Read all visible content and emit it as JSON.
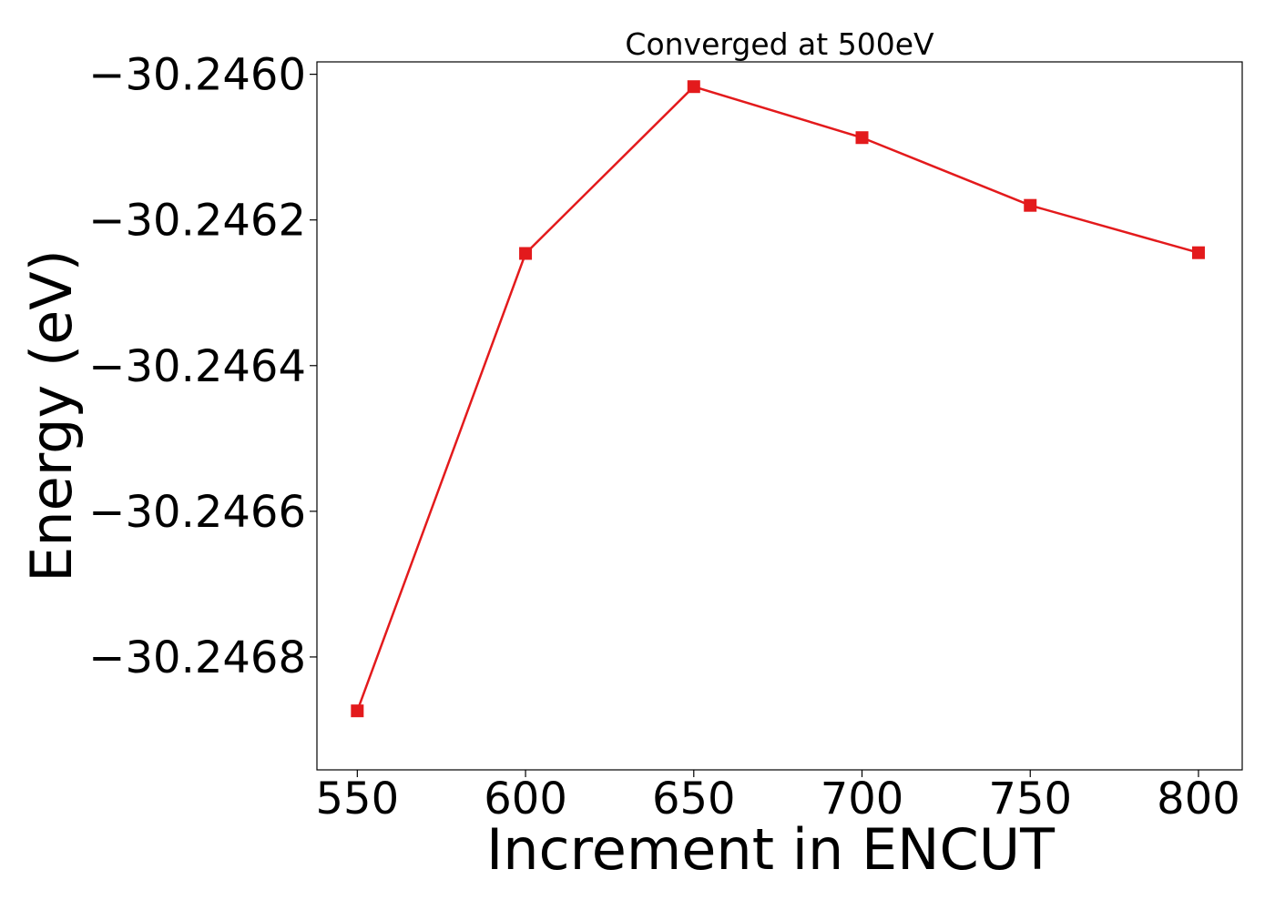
{
  "chart_data": {
    "type": "line",
    "title": "Converged at 500eV",
    "xlabel": "Increment in ENCUT",
    "ylabel": "Energy (eV)",
    "x": [
      550,
      600,
      650,
      700,
      750,
      800
    ],
    "series": [
      {
        "values": [
          -30.246874,
          -30.246246,
          -30.246017,
          -30.246087,
          -30.24618,
          -30.246245
        ],
        "color": "#e31a1c",
        "marker": "square"
      }
    ],
    "xlim": [
      538,
      813
    ],
    "ylim": [
      -30.246955,
      -30.245983
    ],
    "xticks": [
      550,
      600,
      650,
      700,
      750,
      800
    ],
    "xtick_labels": [
      "550",
      "600",
      "650",
      "700",
      "750",
      "800"
    ],
    "yticks": [
      -30.246,
      -30.2462,
      -30.2464,
      -30.2466,
      -30.2468
    ],
    "ytick_labels": [
      "−30.2460",
      "−30.2462",
      "−30.2464",
      "−30.2466",
      "−30.2468"
    ],
    "grid": false,
    "legend": "none"
  }
}
